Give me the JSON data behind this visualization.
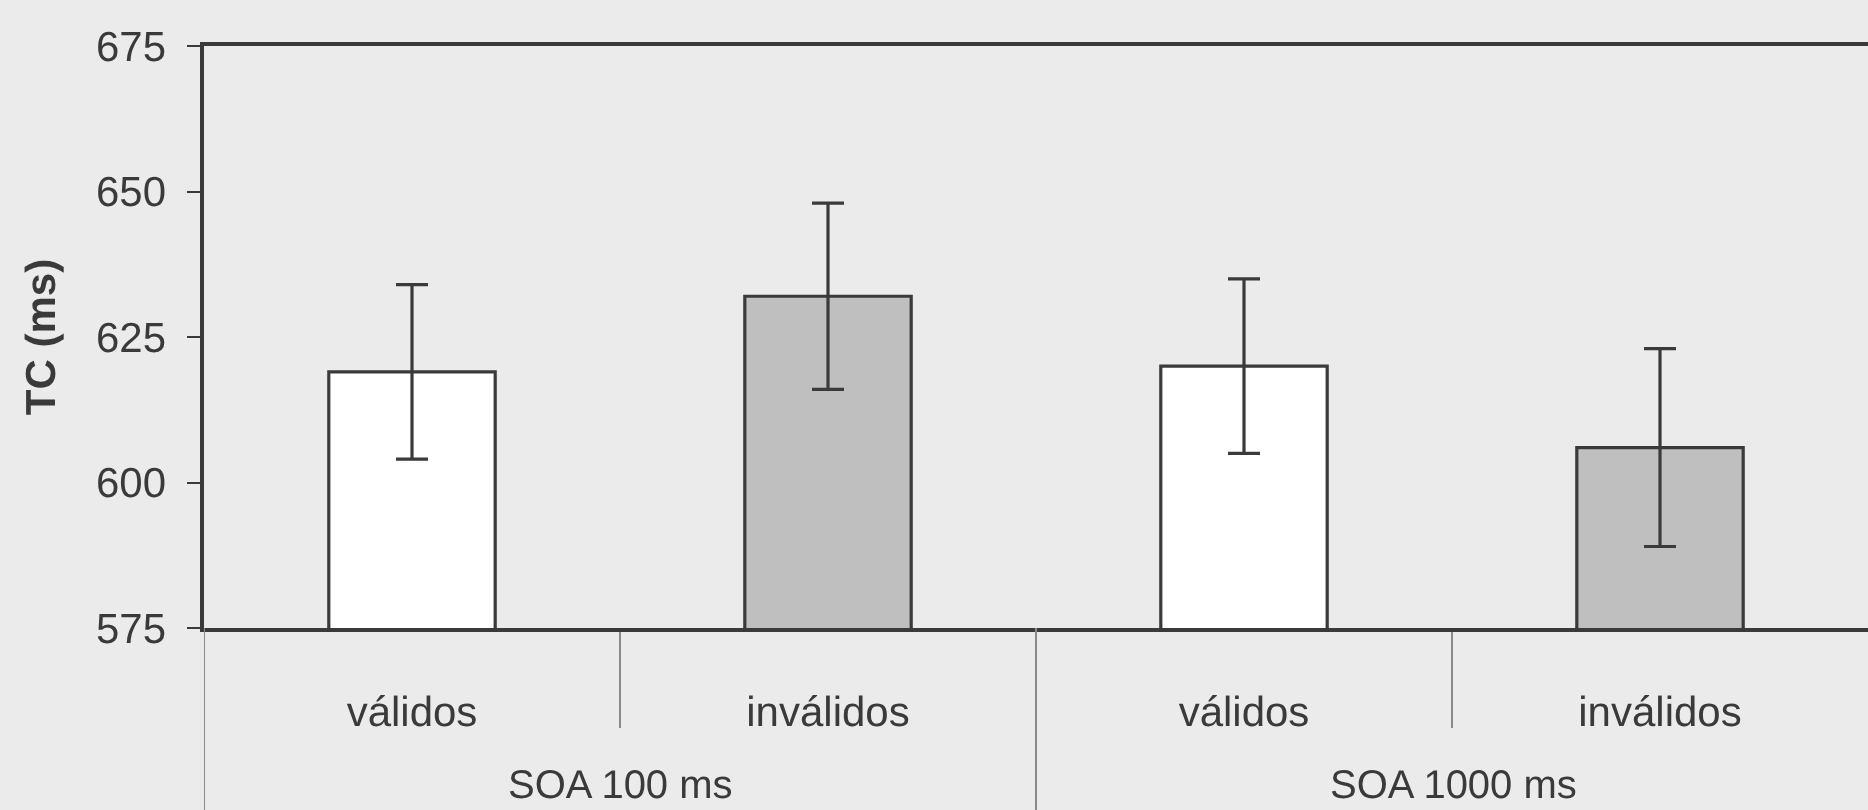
{
  "chart_data": {
    "type": "bar",
    "ylabel": "TC (ms)",
    "categories": [
      "válidos",
      "inválidos",
      "válidos",
      "inválidos"
    ],
    "values": [
      619,
      632,
      620,
      606
    ],
    "errors": [
      15,
      16,
      15,
      17
    ],
    "colors": [
      "#ffffff",
      "#bfbfbf",
      "#ffffff",
      "#bfbfbf"
    ],
    "ylim": [
      575,
      675
    ],
    "yticks": [
      575,
      600,
      625,
      650,
      675
    ],
    "annotations": [
      "SOA 100 ms",
      "SOA 1000 ms"
    ]
  }
}
